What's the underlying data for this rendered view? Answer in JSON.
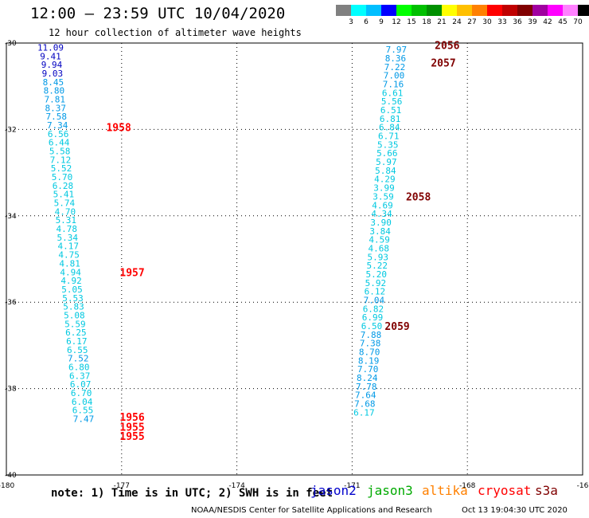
{
  "header": {
    "title": "12:00 – 23:59 UTC 10/04/2020",
    "subtitle": "12 hour collection of altimeter wave heights"
  },
  "colorbar": {
    "unit": "(ft)",
    "bins": [
      {
        "color": "#808080",
        "label": "3"
      },
      {
        "color": "#00ffff",
        "label": "6"
      },
      {
        "color": "#00bfff",
        "label": "9"
      },
      {
        "color": "#0000ff",
        "label": "12"
      },
      {
        "color": "#00ff00",
        "label": "15"
      },
      {
        "color": "#00c000",
        "label": "18"
      },
      {
        "color": "#009000",
        "label": "21"
      },
      {
        "color": "#ffff00",
        "label": "24"
      },
      {
        "color": "#ffc000",
        "label": "27"
      },
      {
        "color": "#ff8000",
        "label": "30"
      },
      {
        "color": "#ff0000",
        "label": "33"
      },
      {
        "color": "#c00000",
        "label": "36"
      },
      {
        "color": "#800000",
        "label": "39"
      },
      {
        "color": "#a000a0",
        "label": "42"
      },
      {
        "color": "#ff00ff",
        "label": "45"
      },
      {
        "color": "#ff80ff",
        "label": "70"
      },
      {
        "color": "#000000",
        "label": ""
      }
    ]
  },
  "colors": {
    "jason2": "#0000cc",
    "jason3": "#00aa00",
    "altika": "#ff8000",
    "cryosat": "#ff0000",
    "s3a": "#800000",
    "swh_cyan": "#00c8e0",
    "swh_lightblue": "#0099e6",
    "swh_blue": "#0000c0"
  },
  "footer": {
    "note": "note: 1) Time is in UTC; 2) SWH is in feet",
    "satellites": [
      "jason2",
      "jason3",
      "altika",
      "cryosat",
      "s3a"
    ],
    "credit": "NOAA/NESDIS Center for Satellite Applications and Research",
    "timestamp": "Oct 13 19:04:30 UTC 2020"
  },
  "chart_data": {
    "type": "scatter",
    "title": "12:00 – 23:59 UTC 10/04/2020",
    "subtitle": "12 hour collection of altimeter wave heights",
    "xlim": [
      -180,
      -165
    ],
    "ylim": [
      -40,
      -30
    ],
    "x_ticks": [
      "-180",
      "-177",
      "-174",
      "-171",
      "-168",
      "-16"
    ],
    "y_ticks": [
      "-30",
      "-32",
      "-34",
      "-36",
      "-38",
      "-40"
    ],
    "grid": "dotted",
    "series": [
      {
        "name": "cryosat",
        "color": "#ff0000",
        "points": [
          {
            "x": -178.85,
            "y": -30.1,
            "v": "11.09",
            "c": "#0000c0"
          },
          {
            "x": -178.85,
            "y": -30.3,
            "v": "9.41",
            "c": "#0000c0"
          },
          {
            "x": -178.82,
            "y": -30.5,
            "v": "9.94",
            "c": "#0000c0"
          },
          {
            "x": -178.8,
            "y": -30.7,
            "v": "9.03",
            "c": "#0000c0"
          },
          {
            "x": -178.78,
            "y": -30.9,
            "v": "8.45",
            "c": "#0099e6"
          },
          {
            "x": -178.76,
            "y": -31.1,
            "v": "8.80",
            "c": "#0099e6"
          },
          {
            "x": -178.74,
            "y": -31.3,
            "v": "7.81",
            "c": "#0099e6"
          },
          {
            "x": -178.72,
            "y": -31.5,
            "v": "8.37",
            "c": "#0099e6"
          },
          {
            "x": -178.7,
            "y": -31.7,
            "v": "7.58",
            "c": "#0099e6"
          },
          {
            "x": -178.67,
            "y": -31.9,
            "v": "7.34",
            "c": "#0099e6"
          },
          {
            "x": -178.65,
            "y": -32.1,
            "v": "6.56",
            "c": "#00c8e0"
          },
          {
            "x": -178.63,
            "y": -32.3,
            "v": "6.44",
            "c": "#00c8e0"
          },
          {
            "x": -178.61,
            "y": -32.5,
            "v": "5.58",
            "c": "#00c8e0"
          },
          {
            "x": -178.59,
            "y": -32.7,
            "v": "7.12",
            "c": "#00c8e0"
          },
          {
            "x": -178.57,
            "y": -32.9,
            "v": "5.52",
            "c": "#00c8e0"
          },
          {
            "x": -178.55,
            "y": -33.1,
            "v": "5.70",
            "c": "#00c8e0"
          },
          {
            "x": -178.53,
            "y": -33.3,
            "v": "6.28",
            "c": "#00c8e0"
          },
          {
            "x": -178.51,
            "y": -33.5,
            "v": "5.41",
            "c": "#00c8e0"
          },
          {
            "x": -178.49,
            "y": -33.7,
            "v": "5.74",
            "c": "#00c8e0"
          },
          {
            "x": -178.47,
            "y": -33.9,
            "v": "4.70",
            "c": "#00c8e0"
          },
          {
            "x": -178.45,
            "y": -34.1,
            "v": "5.31",
            "c": "#00c8e0"
          },
          {
            "x": -178.43,
            "y": -34.3,
            "v": "4.78",
            "c": "#00c8e0"
          },
          {
            "x": -178.41,
            "y": -34.5,
            "v": "5.34",
            "c": "#00c8e0"
          },
          {
            "x": -178.39,
            "y": -34.7,
            "v": "4.17",
            "c": "#00c8e0"
          },
          {
            "x": -178.37,
            "y": -34.9,
            "v": "4.75",
            "c": "#00c8e0"
          },
          {
            "x": -178.35,
            "y": -35.1,
            "v": "4.81",
            "c": "#00c8e0"
          },
          {
            "x": -178.33,
            "y": -35.3,
            "v": "4.94",
            "c": "#00c8e0"
          },
          {
            "x": -178.31,
            "y": -35.5,
            "v": "4.92",
            "c": "#00c8e0"
          },
          {
            "x": -178.29,
            "y": -35.7,
            "v": "5.05",
            "c": "#00c8e0"
          },
          {
            "x": -178.27,
            "y": -35.9,
            "v": "5.53",
            "c": "#00c8e0"
          },
          {
            "x": -178.25,
            "y": -36.1,
            "v": "5.83",
            "c": "#00c8e0"
          },
          {
            "x": -178.23,
            "y": -36.3,
            "v": "5.08",
            "c": "#00c8e0"
          },
          {
            "x": -178.21,
            "y": -36.5,
            "v": "5.59",
            "c": "#00c8e0"
          },
          {
            "x": -178.19,
            "y": -36.7,
            "v": "6.25",
            "c": "#00c8e0"
          },
          {
            "x": -178.17,
            "y": -36.9,
            "v": "6.17",
            "c": "#00c8e0"
          },
          {
            "x": -178.15,
            "y": -37.1,
            "v": "6.55",
            "c": "#00c8e0"
          },
          {
            "x": -178.13,
            "y": -37.3,
            "v": "7.52",
            "c": "#0099e6"
          },
          {
            "x": -178.11,
            "y": -37.5,
            "v": "6.80",
            "c": "#00c8e0"
          },
          {
            "x": -178.09,
            "y": -37.7,
            "v": "6.37",
            "c": "#00c8e0"
          },
          {
            "x": -178.07,
            "y": -37.9,
            "v": "6.07",
            "c": "#00c8e0"
          },
          {
            "x": -178.05,
            "y": -38.1,
            "v": "6.70",
            "c": "#00c8e0"
          },
          {
            "x": -178.03,
            "y": -38.3,
            "v": "6.04",
            "c": "#00c8e0"
          },
          {
            "x": -178.01,
            "y": -38.5,
            "v": "6.55",
            "c": "#00c8e0"
          },
          {
            "x": -177.99,
            "y": -38.7,
            "v": "7.47",
            "c": "#0099e6"
          }
        ],
        "time_labels": [
          {
            "x": -177.4,
            "y": -31.95,
            "t": "1958"
          },
          {
            "x": -177.05,
            "y": -35.3,
            "t": "1957"
          },
          {
            "x": -177.05,
            "y": -38.65,
            "t": "1956"
          },
          {
            "x": -177.05,
            "y": -38.88,
            "t": "1955"
          },
          {
            "x": -177.05,
            "y": -39.1,
            "t": "1955"
          }
        ]
      },
      {
        "name": "s3a",
        "color": "#800000",
        "points": [
          {
            "x": -169.85,
            "y": -30.15,
            "v": "7.97",
            "c": "#0099e6"
          },
          {
            "x": -169.87,
            "y": -30.35,
            "v": "8.36",
            "c": "#0099e6"
          },
          {
            "x": -169.89,
            "y": -30.55,
            "v": "7.22",
            "c": "#0099e6"
          },
          {
            "x": -169.91,
            "y": -30.75,
            "v": "7.00",
            "c": "#0099e6"
          },
          {
            "x": -169.93,
            "y": -30.95,
            "v": "7.16",
            "c": "#0099e6"
          },
          {
            "x": -169.95,
            "y": -31.15,
            "v": "6.61",
            "c": "#00c8e0"
          },
          {
            "x": -169.97,
            "y": -31.35,
            "v": "5.56",
            "c": "#00c8e0"
          },
          {
            "x": -169.99,
            "y": -31.55,
            "v": "6.51",
            "c": "#00c8e0"
          },
          {
            "x": -170.01,
            "y": -31.75,
            "v": "6.81",
            "c": "#00c8e0"
          },
          {
            "x": -170.03,
            "y": -31.95,
            "v": "6.84",
            "c": "#00c8e0"
          },
          {
            "x": -170.05,
            "y": -32.15,
            "v": "6.71",
            "c": "#00c8e0"
          },
          {
            "x": -170.07,
            "y": -32.35,
            "v": "5.35",
            "c": "#00c8e0"
          },
          {
            "x": -170.09,
            "y": -32.55,
            "v": "5.66",
            "c": "#00c8e0"
          },
          {
            "x": -170.11,
            "y": -32.75,
            "v": "5.97",
            "c": "#00c8e0"
          },
          {
            "x": -170.13,
            "y": -32.95,
            "v": "5.84",
            "c": "#00c8e0"
          },
          {
            "x": -170.15,
            "y": -33.15,
            "v": "4.29",
            "c": "#00c8e0"
          },
          {
            "x": -170.17,
            "y": -33.35,
            "v": "3.99",
            "c": "#00c8e0"
          },
          {
            "x": -170.19,
            "y": -33.55,
            "v": "3.59",
            "c": "#00c8e0"
          },
          {
            "x": -170.21,
            "y": -33.75,
            "v": "4.69",
            "c": "#00c8e0"
          },
          {
            "x": -170.23,
            "y": -33.95,
            "v": "4.34",
            "c": "#00c8e0"
          },
          {
            "x": -170.25,
            "y": -34.15,
            "v": "3.90",
            "c": "#00c8e0"
          },
          {
            "x": -170.27,
            "y": -34.35,
            "v": "3.84",
            "c": "#00c8e0"
          },
          {
            "x": -170.29,
            "y": -34.55,
            "v": "4.59",
            "c": "#00c8e0"
          },
          {
            "x": -170.31,
            "y": -34.75,
            "v": "4.68",
            "c": "#00c8e0"
          },
          {
            "x": -170.33,
            "y": -34.95,
            "v": "5.93",
            "c": "#00c8e0"
          },
          {
            "x": -170.35,
            "y": -35.15,
            "v": "5.22",
            "c": "#00c8e0"
          },
          {
            "x": -170.37,
            "y": -35.35,
            "v": "5.20",
            "c": "#00c8e0"
          },
          {
            "x": -170.39,
            "y": -35.55,
            "v": "5.92",
            "c": "#00c8e0"
          },
          {
            "x": -170.41,
            "y": -35.75,
            "v": "6.12",
            "c": "#00c8e0"
          },
          {
            "x": -170.43,
            "y": -35.95,
            "v": "7.04",
            "c": "#0099e6"
          },
          {
            "x": -170.45,
            "y": -36.15,
            "v": "6.82",
            "c": "#00c8e0"
          },
          {
            "x": -170.47,
            "y": -36.35,
            "v": "6.99",
            "c": "#00c8e0"
          },
          {
            "x": -170.49,
            "y": -36.55,
            "v": "6.50",
            "c": "#00c8e0"
          },
          {
            "x": -170.51,
            "y": -36.75,
            "v": "7.88",
            "c": "#0099e6"
          },
          {
            "x": -170.53,
            "y": -36.95,
            "v": "7.38",
            "c": "#0099e6"
          },
          {
            "x": -170.55,
            "y": -37.15,
            "v": "8.70",
            "c": "#0099e6"
          },
          {
            "x": -170.57,
            "y": -37.35,
            "v": "8.19",
            "c": "#0099e6"
          },
          {
            "x": -170.59,
            "y": -37.55,
            "v": "7.70",
            "c": "#0099e6"
          },
          {
            "x": -170.61,
            "y": -37.75,
            "v": "8.24",
            "c": "#0099e6"
          },
          {
            "x": -170.63,
            "y": -37.95,
            "v": "7.78",
            "c": "#0099e6"
          },
          {
            "x": -170.65,
            "y": -38.15,
            "v": "7.64",
            "c": "#0099e6"
          },
          {
            "x": -170.67,
            "y": -38.35,
            "v": "7.68",
            "c": "#0099e6"
          },
          {
            "x": -170.69,
            "y": -38.55,
            "v": "6.17",
            "c": "#00c8e0"
          }
        ],
        "time_labels": [
          {
            "x": -168.85,
            "y": -30.05,
            "t": "2056"
          },
          {
            "x": -168.95,
            "y": -30.45,
            "t": "2057"
          },
          {
            "x": -169.6,
            "y": -33.55,
            "t": "2058"
          },
          {
            "x": -170.15,
            "y": -36.55,
            "t": "2059"
          }
        ]
      }
    ]
  }
}
